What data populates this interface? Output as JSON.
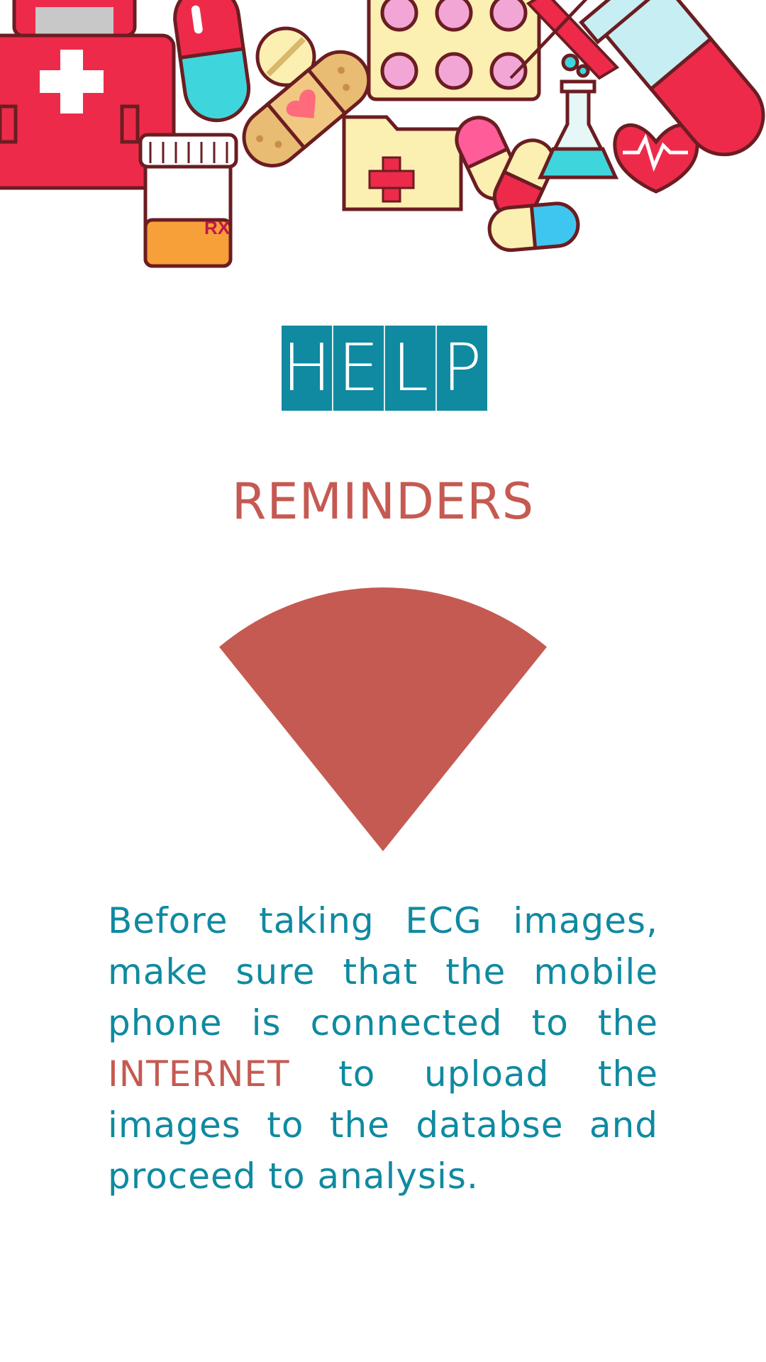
{
  "colors": {
    "teal": "#0f8aa0",
    "coral": "#c55a52",
    "red": "#ee2a4a",
    "cream": "#fbefb2",
    "cyan": "#3ed6dc",
    "orange": "#f7a03a",
    "outline": "#6b1d22"
  },
  "banner": {
    "icons": [
      "first-aid-kit-icon",
      "capsule-icon",
      "pill-bottle-icon",
      "bandage-icon",
      "tablet-icon",
      "blister-pack-icon",
      "folder-icon",
      "ribbon-icon",
      "flask-icon",
      "heartbeat-icon",
      "test-tube-icon"
    ],
    "rx_label": "RX"
  },
  "logo": {
    "letters": [
      "H",
      "E",
      "L",
      "P"
    ]
  },
  "heading": "REMINDERS",
  "message": {
    "part1": "Before taking ECG images, make sure that the mobile phone is connected to the ",
    "highlight": "INTERNET",
    "part2": " to upload the images to the databse and proceed to analysis."
  }
}
